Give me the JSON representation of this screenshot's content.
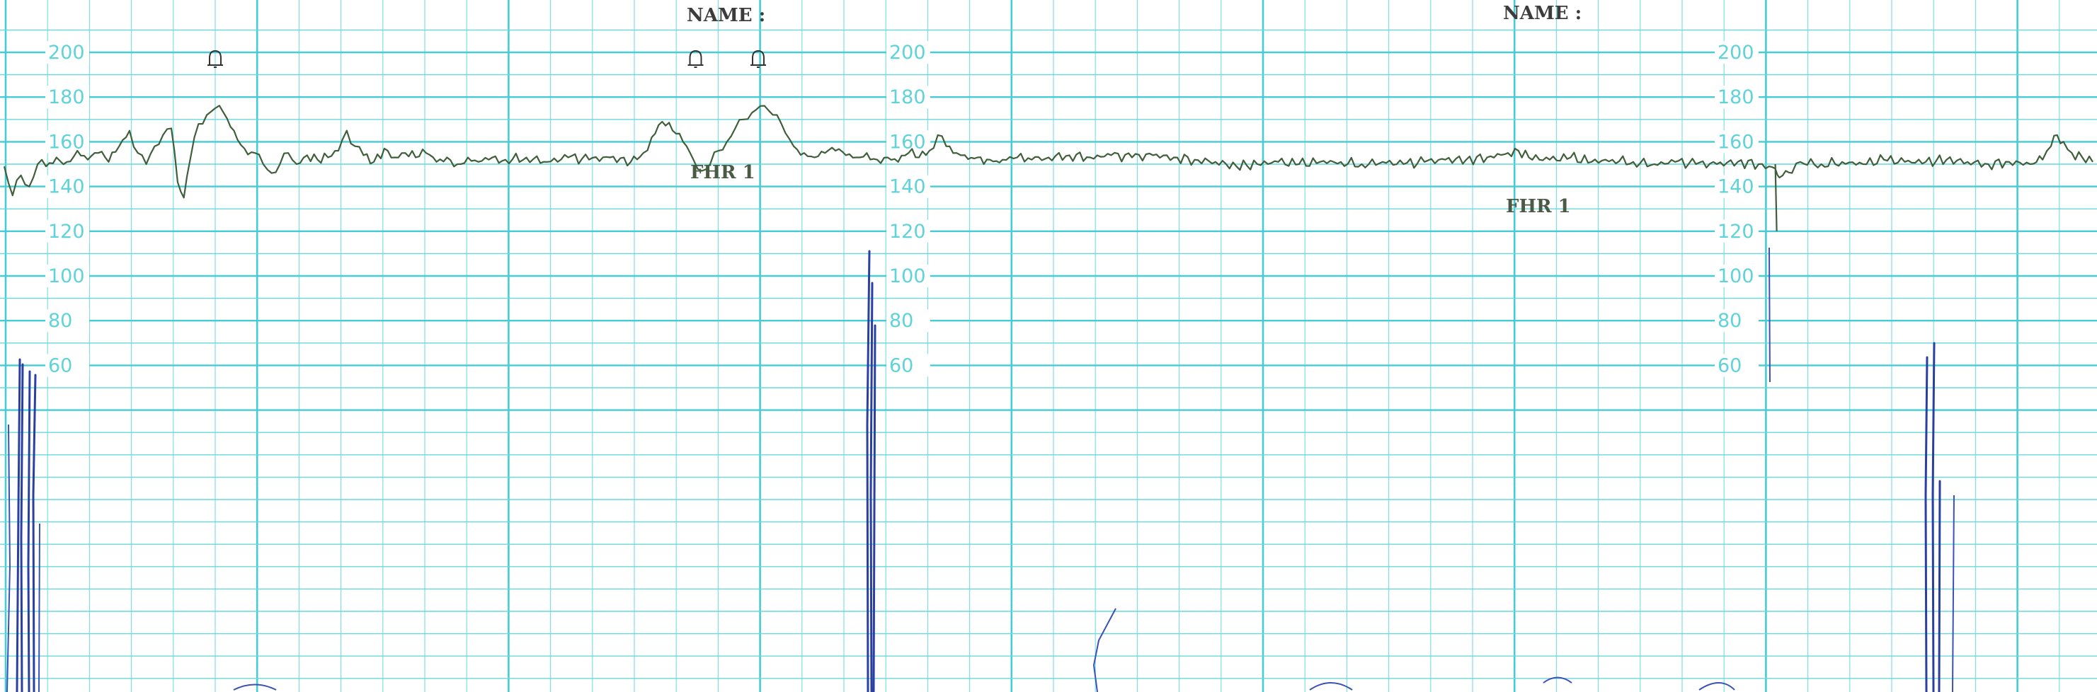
{
  "header": {
    "name_label": "NAME :"
  },
  "chart_data": {
    "type": "line",
    "title": "",
    "xlabel": "",
    "ylabel": "",
    "series_label": "FHR 1",
    "y_ticks": [
      200,
      180,
      160,
      140,
      120,
      100,
      80,
      60
    ],
    "ylim": [
      50,
      210
    ],
    "xlim": [
      0,
      100
    ],
    "grid": true,
    "event_marker_icon": "bell-icon",
    "event_markers_x": [
      10,
      33,
      36
    ],
    "series": [
      {
        "name": "FHR 1",
        "color": "#3f5f3a",
        "points": [
          [
            0,
            149
          ],
          [
            0.4,
            136
          ],
          [
            0.8,
            145
          ],
          [
            1.2,
            140
          ],
          [
            1.6,
            150
          ],
          [
            2,
            149
          ],
          [
            2.5,
            153
          ],
          [
            3,
            151
          ],
          [
            3.5,
            156
          ],
          [
            4,
            152
          ],
          [
            4.5,
            155
          ],
          [
            5,
            151
          ],
          [
            5.5,
            158
          ],
          [
            6,
            165
          ],
          [
            6.4,
            155
          ],
          [
            6.8,
            150
          ],
          [
            7.2,
            158
          ],
          [
            7.6,
            163
          ],
          [
            8,
            166
          ],
          [
            8.3,
            142
          ],
          [
            8.6,
            135
          ],
          [
            8.9,
            152
          ],
          [
            9.3,
            168
          ],
          [
            9.7,
            172
          ],
          [
            10.1,
            175
          ],
          [
            10.5,
            173
          ],
          [
            11,
            165
          ],
          [
            11.5,
            157
          ],
          [
            12,
            155
          ],
          [
            12.4,
            150
          ],
          [
            12.8,
            146
          ],
          [
            13.2,
            150
          ],
          [
            13.6,
            155
          ],
          [
            14,
            150
          ],
          [
            14.5,
            154
          ],
          [
            15,
            152
          ],
          [
            15.5,
            153
          ],
          [
            16,
            156
          ],
          [
            16.4,
            165
          ],
          [
            16.8,
            158
          ],
          [
            17.2,
            154
          ],
          [
            17.7,
            151
          ],
          [
            18.2,
            157
          ],
          [
            18.7,
            153
          ],
          [
            19.2,
            155
          ],
          [
            19.7,
            153
          ],
          [
            20.2,
            155
          ],
          [
            20.7,
            151
          ],
          [
            21.2,
            153
          ],
          [
            21.7,
            150
          ],
          [
            22.2,
            153
          ],
          [
            22.7,
            151
          ],
          [
            23.2,
            152
          ],
          [
            24,
            152
          ],
          [
            25,
            153
          ],
          [
            26,
            151
          ],
          [
            27,
            153
          ],
          [
            28,
            152
          ],
          [
            29,
            153
          ],
          [
            30,
            151
          ],
          [
            30.6,
            155
          ],
          [
            31,
            162
          ],
          [
            31.5,
            169
          ],
          [
            32,
            165
          ],
          [
            32.5,
            160
          ],
          [
            33,
            152
          ],
          [
            33.4,
            147
          ],
          [
            33.8,
            150
          ],
          [
            34.2,
            156
          ],
          [
            34.6,
            160
          ],
          [
            35,
            166
          ],
          [
            35.4,
            170
          ],
          [
            35.8,
            173
          ],
          [
            36.2,
            176
          ],
          [
            36.6,
            174
          ],
          [
            37,
            172
          ],
          [
            37.4,
            164
          ],
          [
            37.8,
            158
          ],
          [
            38.3,
            155
          ],
          [
            38.8,
            153
          ],
          [
            39.3,
            155
          ],
          [
            39.8,
            156
          ],
          [
            40.3,
            154
          ],
          [
            40.8,
            153
          ],
          [
            41.3,
            155
          ],
          [
            41.8,
            152
          ],
          [
            42.3,
            153
          ],
          [
            42.8,
            151
          ],
          [
            43.3,
            155
          ],
          [
            43.8,
            153
          ],
          [
            44.3,
            156
          ],
          [
            44.7,
            163
          ],
          [
            45.1,
            158
          ],
          [
            45.6,
            155
          ],
          [
            46,
            154
          ],
          [
            46.6,
            153
          ],
          [
            47.2,
            152
          ],
          [
            47.8,
            152
          ],
          [
            48.5,
            153
          ],
          [
            49.2,
            152
          ],
          [
            50,
            153
          ],
          [
            51,
            154
          ],
          [
            52,
            153
          ],
          [
            53,
            154
          ],
          [
            54,
            153
          ],
          [
            55,
            154
          ],
          [
            56,
            153
          ],
          [
            57,
            152
          ],
          [
            58,
            151
          ],
          [
            59,
            149
          ],
          [
            60,
            150
          ],
          [
            61,
            151
          ],
          [
            62,
            150
          ],
          [
            63,
            151
          ],
          [
            64,
            151
          ],
          [
            65,
            150
          ],
          [
            66,
            151
          ],
          [
            67,
            150
          ],
          [
            68,
            151
          ],
          [
            69,
            152
          ],
          [
            70,
            152
          ],
          [
            71,
            153
          ],
          [
            72,
            155
          ],
          [
            72.5,
            156
          ],
          [
            73,
            153
          ],
          [
            74,
            152
          ],
          [
            75,
            153
          ],
          [
            76,
            151
          ],
          [
            77,
            152
          ],
          [
            78,
            151
          ],
          [
            79,
            150
          ],
          [
            80,
            151
          ],
          [
            81,
            150
          ],
          [
            82,
            150
          ],
          [
            83,
            151
          ],
          [
            84,
            150
          ],
          [
            84.5,
            149
          ],
          [
            84.8,
            148
          ],
          [
            85,
            144
          ],
          [
            85.3,
            147
          ],
          [
            85.6,
            146
          ],
          [
            86,
            151
          ],
          [
            87,
            150
          ],
          [
            88,
            151
          ],
          [
            89,
            150
          ],
          [
            90,
            152
          ],
          [
            91,
            151
          ],
          [
            92,
            151
          ],
          [
            93,
            152
          ],
          [
            94,
            151
          ],
          [
            95,
            150
          ],
          [
            96,
            151
          ],
          [
            97,
            150
          ],
          [
            97.6,
            152
          ],
          [
            98,
            158
          ],
          [
            98.3,
            163
          ],
          [
            98.6,
            160
          ],
          [
            99,
            155
          ],
          [
            99.5,
            153
          ],
          [
            100,
            151
          ]
        ]
      }
    ]
  }
}
